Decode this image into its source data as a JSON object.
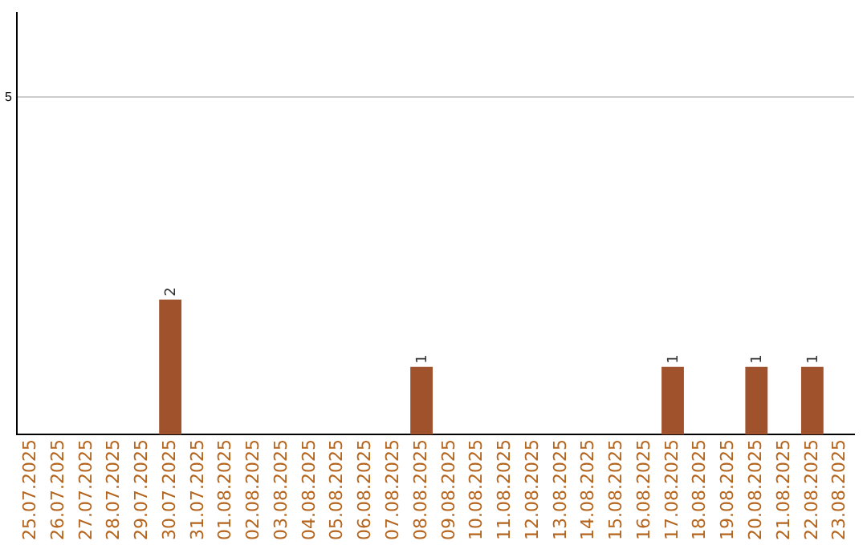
{
  "chart_data": {
    "type": "bar",
    "categories": [
      "25.07.2025",
      "26.07.2025",
      "27.07.2025",
      "28.07.2025",
      "29.07.2025",
      "30.07.2025",
      "31.07.2025",
      "01.08.2025",
      "02.08.2025",
      "03.08.2025",
      "04.08.2025",
      "05.08.2025",
      "06.08.2025",
      "07.08.2025",
      "08.08.2025",
      "09.08.2025",
      "10.08.2025",
      "11.08.2025",
      "12.08.2025",
      "13.08.2025",
      "14.08.2025",
      "15.08.2025",
      "16.08.2025",
      "17.08.2025",
      "18.08.2025",
      "19.08.2025",
      "20.08.2025",
      "21.08.2025",
      "22.08.2025",
      "23.08.2025"
    ],
    "values": [
      0,
      0,
      0,
      0,
      0,
      2,
      0,
      0,
      0,
      0,
      0,
      0,
      0,
      0,
      1,
      0,
      0,
      0,
      0,
      0,
      0,
      0,
      0,
      1,
      0,
      0,
      1,
      0,
      1,
      0
    ],
    "value_labels": [
      null,
      null,
      null,
      null,
      null,
      "2",
      null,
      null,
      null,
      null,
      null,
      null,
      null,
      null,
      "1",
      null,
      null,
      null,
      null,
      null,
      null,
      null,
      null,
      "1",
      null,
      null,
      "1",
      null,
      "1",
      null
    ],
    "color": "#a0522d",
    "ylim": [
      0,
      6.25
    ],
    "yticks": [
      5
    ],
    "grid": "y",
    "legend": false
  }
}
